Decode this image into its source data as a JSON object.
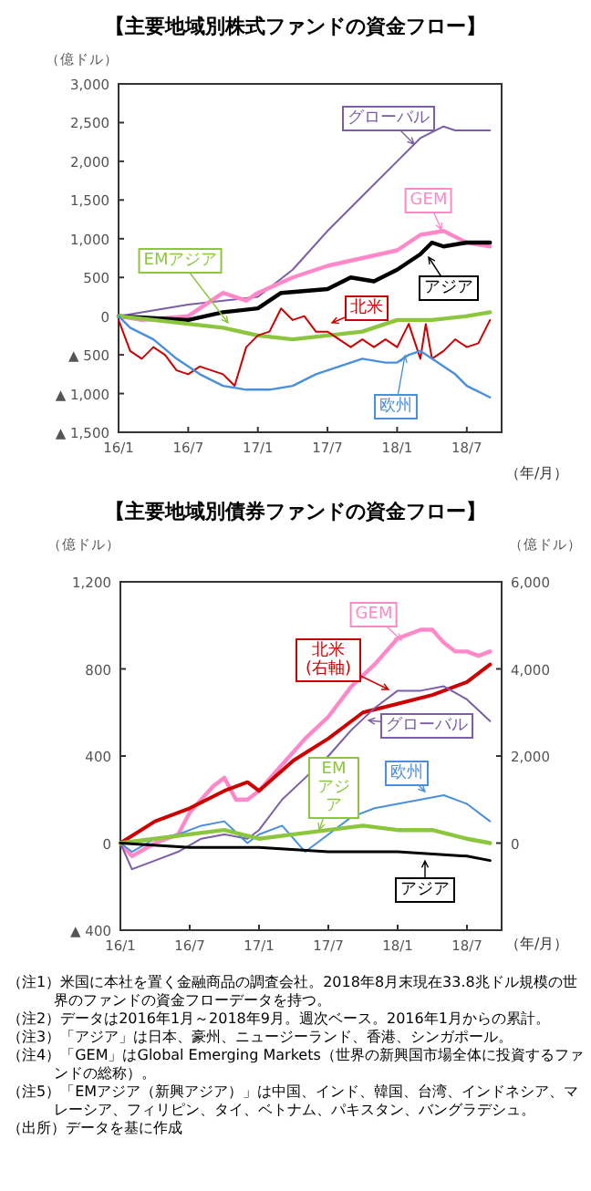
{
  "chart_data": [
    {
      "type": "line",
      "title": "【主要地域別株式ファンドの資金フロー】",
      "ylabel": "（億ドル）",
      "xlabel": "（年/月）",
      "grid": false,
      "marker": "none",
      "xlim": [
        "2016-01",
        "2018-10"
      ],
      "ylim": [
        -1500,
        3000
      ],
      "xticks": [
        {
          "value": "2016-01",
          "label": "16/1"
        },
        {
          "value": "2016-07",
          "label": "16/7"
        },
        {
          "value": "2017-01",
          "label": "17/1"
        },
        {
          "value": "2017-07",
          "label": "17/7"
        },
        {
          "value": "2018-01",
          "label": "18/1"
        },
        {
          "value": "2018-07",
          "label": "18/7"
        }
      ],
      "yticks": [
        {
          "value": 3000,
          "label": "3,000"
        },
        {
          "value": 2500,
          "label": "2,500"
        },
        {
          "value": 2000,
          "label": "2,000"
        },
        {
          "value": 1500,
          "label": "1,500"
        },
        {
          "value": 1000,
          "label": "1,000"
        },
        {
          "value": 500,
          "label": "500"
        },
        0,
        {
          "value": -500,
          "label": "▲ 500"
        },
        {
          "value": -1000,
          "label": "▲ 1,000"
        },
        {
          "value": -1500,
          "label": "▲ 1,500"
        }
      ],
      "series": [
        {
          "name": "グローバル",
          "color": "#7b5ea7",
          "x": [
            "2016-01",
            "2016-07",
            "2017-01",
            "2017-04",
            "2017-07",
            "2017-10",
            "2018-01",
            "2018-03",
            "2018-05",
            "2018-06",
            "2018-07",
            "2018-09"
          ],
          "values": [
            0,
            150,
            250,
            600,
            1100,
            1550,
            2000,
            2300,
            2450,
            2400,
            2400,
            2400
          ]
        },
        {
          "name": "GEM",
          "color": "#ff88c8",
          "x": [
            "2016-01",
            "2016-03",
            "2016-07",
            "2016-10",
            "2016-12",
            "2017-01",
            "2017-04",
            "2017-07",
            "2017-10",
            "2018-01",
            "2018-03",
            "2018-05",
            "2018-07",
            "2018-09"
          ],
          "values": [
            0,
            -50,
            0,
            300,
            200,
            300,
            500,
            650,
            750,
            850,
            1050,
            1100,
            950,
            900
          ]
        },
        {
          "name": "アジア",
          "color": "#000000",
          "x": [
            "2016-01",
            "2016-07",
            "2016-10",
            "2017-01",
            "2017-03",
            "2017-07",
            "2017-09",
            "2017-11",
            "2018-01",
            "2018-03",
            "2018-04",
            "2018-05",
            "2018-07",
            "2018-09"
          ],
          "values": [
            0,
            -50,
            50,
            100,
            300,
            350,
            500,
            450,
            600,
            800,
            950,
            900,
            950,
            950
          ]
        },
        {
          "name": "EMアジア",
          "color": "#8cc63f",
          "x": [
            "2016-01",
            "2016-04",
            "2016-07",
            "2016-10",
            "2017-01",
            "2017-04",
            "2017-07",
            "2017-10",
            "2018-01",
            "2018-04",
            "2018-07",
            "2018-09"
          ],
          "values": [
            0,
            -50,
            -100,
            -150,
            -250,
            -300,
            -250,
            -200,
            -50,
            -50,
            0,
            50
          ]
        },
        {
          "name": "北米",
          "color": "#cc0000",
          "x": [
            "2016-01",
            "2016-02",
            "2016-03",
            "2016-04",
            "2016-05",
            "2016-06",
            "2016-07",
            "2016-08",
            "2016-09",
            "2016-10",
            "2016-11",
            "2016-12",
            "2017-01",
            "2017-02",
            "2017-03",
            "2017-04",
            "2017-05",
            "2017-06",
            "2017-07",
            "2017-08",
            "2017-09",
            "2017-10",
            "2017-11",
            "2017-12",
            "2018-01",
            "2018-02",
            "2018-03",
            "2018-03-15",
            "2018-04",
            "2018-05",
            "2018-06",
            "2018-07",
            "2018-08",
            "2018-09"
          ],
          "values": [
            -50,
            -450,
            -550,
            -400,
            -500,
            -700,
            -750,
            -650,
            -700,
            -750,
            -900,
            -400,
            -250,
            -200,
            100,
            -50,
            0,
            -200,
            -200,
            -300,
            -400,
            -300,
            -400,
            -300,
            -400,
            -100,
            -550,
            -100,
            -550,
            -450,
            -300,
            -400,
            -350,
            -50
          ]
        },
        {
          "name": "欧州",
          "color": "#4a8fdc",
          "x": [
            "2016-01",
            "2016-02",
            "2016-04",
            "2016-06",
            "2016-08",
            "2016-10",
            "2016-12",
            "2017-02",
            "2017-04",
            "2017-06",
            "2017-08",
            "2017-10",
            "2017-12",
            "2018-01",
            "2018-02",
            "2018-03",
            "2018-04",
            "2018-06",
            "2018-07",
            "2018-09"
          ],
          "values": [
            0,
            -150,
            -300,
            -550,
            -750,
            -900,
            -950,
            -950,
            -900,
            -750,
            -650,
            -550,
            -600,
            -600,
            -500,
            -450,
            -550,
            -750,
            -900,
            -1050
          ]
        }
      ]
    },
    {
      "type": "line",
      "title": "【主要地域別債券ファンドの資金フロー】",
      "ylabel": "（億ドル）",
      "y2label": "（億ドル）",
      "xlabel": "（年/月）",
      "grid": false,
      "marker": "none",
      "xlim": [
        "2016-01",
        "2018-10"
      ],
      "ylim": [
        -400,
        1200
      ],
      "y2lim": [
        -2000,
        6000
      ],
      "xticks": [
        {
          "value": "2016-01",
          "label": "16/1"
        },
        {
          "value": "2016-07",
          "label": "16/7"
        },
        {
          "value": "2017-01",
          "label": "17/1"
        },
        {
          "value": "2017-07",
          "label": "17/7"
        },
        {
          "value": "2018-01",
          "label": "18/1"
        },
        {
          "value": "2018-07",
          "label": "18/7"
        }
      ],
      "yticks": [
        {
          "value": 1200,
          "label": "1,200"
        },
        800,
        400,
        0,
        {
          "value": -400,
          "label": "▲ 400"
        }
      ],
      "y2ticks": [
        {
          "value": 6000,
          "label": "6,000"
        },
        {
          "value": 4000,
          "label": "4,000"
        },
        {
          "value": 2000,
          "label": "2,000"
        },
        0,
        {
          "value": -2000,
          "label": null
        }
      ],
      "series": [
        {
          "name": "GEM",
          "color": "#ff88c8",
          "x": [
            "2016-01",
            "2016-02",
            "2016-04",
            "2016-06",
            "2016-07",
            "2016-09",
            "2016-10",
            "2016-11",
            "2016-12",
            "2017-01",
            "2017-03",
            "2017-05",
            "2017-07",
            "2017-09",
            "2017-11",
            "2018-01",
            "2018-03",
            "2018-04",
            "2018-05",
            "2018-06",
            "2018-07",
            "2018-08",
            "2018-09"
          ],
          "values": [
            0,
            -60,
            0,
            40,
            140,
            260,
            300,
            200,
            200,
            240,
            360,
            480,
            580,
            720,
            820,
            940,
            980,
            980,
            920,
            880,
            880,
            860,
            880
          ]
        },
        {
          "name": "北米(右軸)",
          "color": "#cc0000",
          "axis": "y2",
          "x": [
            "2016-01",
            "2016-04",
            "2016-07",
            "2016-10",
            "2016-12",
            "2017-01",
            "2017-04",
            "2017-07",
            "2017-10",
            "2018-01",
            "2018-04",
            "2018-07",
            "2018-09"
          ],
          "values": [
            0,
            500,
            800,
            1200,
            1400,
            1200,
            1900,
            2400,
            3000,
            3200,
            3400,
            3700,
            4100
          ]
        },
        {
          "name": "グローバル",
          "color": "#7b5ea7",
          "x": [
            "2016-01",
            "2016-02",
            "2016-04",
            "2016-06",
            "2016-08",
            "2016-10",
            "2016-12",
            "2017-01",
            "2017-03",
            "2017-05",
            "2017-07",
            "2017-09",
            "2017-11",
            "2018-01",
            "2018-03",
            "2018-05",
            "2018-07",
            "2018-09"
          ],
          "values": [
            0,
            -120,
            -80,
            -40,
            20,
            40,
            20,
            60,
            200,
            300,
            400,
            520,
            620,
            700,
            700,
            720,
            660,
            560
          ]
        },
        {
          "name": "欧州",
          "color": "#4a8fdc",
          "x": [
            "2016-01",
            "2016-02",
            "2016-04",
            "2016-06",
            "2016-08",
            "2016-10",
            "2016-12",
            "2017-01",
            "2017-03",
            "2017-05",
            "2017-07",
            "2017-09",
            "2017-11",
            "2018-01",
            "2018-03",
            "2018-05",
            "2018-07",
            "2018-09"
          ],
          "values": [
            0,
            -40,
            20,
            40,
            80,
            100,
            0,
            40,
            80,
            -40,
            40,
            120,
            160,
            180,
            200,
            220,
            180,
            100
          ]
        },
        {
          "name": "EMアジア",
          "color": "#8cc63f",
          "x": [
            "2016-01",
            "2016-04",
            "2016-07",
            "2016-10",
            "2017-01",
            "2017-04",
            "2017-07",
            "2017-10",
            "2018-01",
            "2018-04",
            "2018-07",
            "2018-09"
          ],
          "values": [
            0,
            20,
            40,
            60,
            20,
            40,
            60,
            80,
            60,
            60,
            20,
            0
          ]
        },
        {
          "name": "アジア",
          "color": "#000000",
          "x": [
            "2016-01",
            "2016-07",
            "2017-01",
            "2017-07",
            "2018-01",
            "2018-07",
            "2018-09"
          ],
          "values": [
            0,
            -20,
            -20,
            -40,
            -40,
            -60,
            -80
          ]
        }
      ],
      "annotations": [
        "（注1）米国に本社を置く金融商品の調査会社。2018年8月末現在33.8兆ドル規模の世界のファンドの資金フローデータを持つ。",
        "（注2）データは2016年1月～2018年9月。週次ベース。2016年1月からの累計。",
        "（注3）「アジア」は日本、豪州、ニュージーランド、香港、シンガポール。",
        "（注4）「GEM」はGlobal Emerging Markets（世界の新興国市場全体に投資するファンドの総称）。",
        "（注5）「EMアジア（新興アジア）」は中国、インド、韓国、台湾、インドネシア、マレーシア、フィリピン、タイ、ベトナム、パキスタン、バングラデシュ。",
        "（出所）データを基に作成"
      ]
    }
  ]
}
